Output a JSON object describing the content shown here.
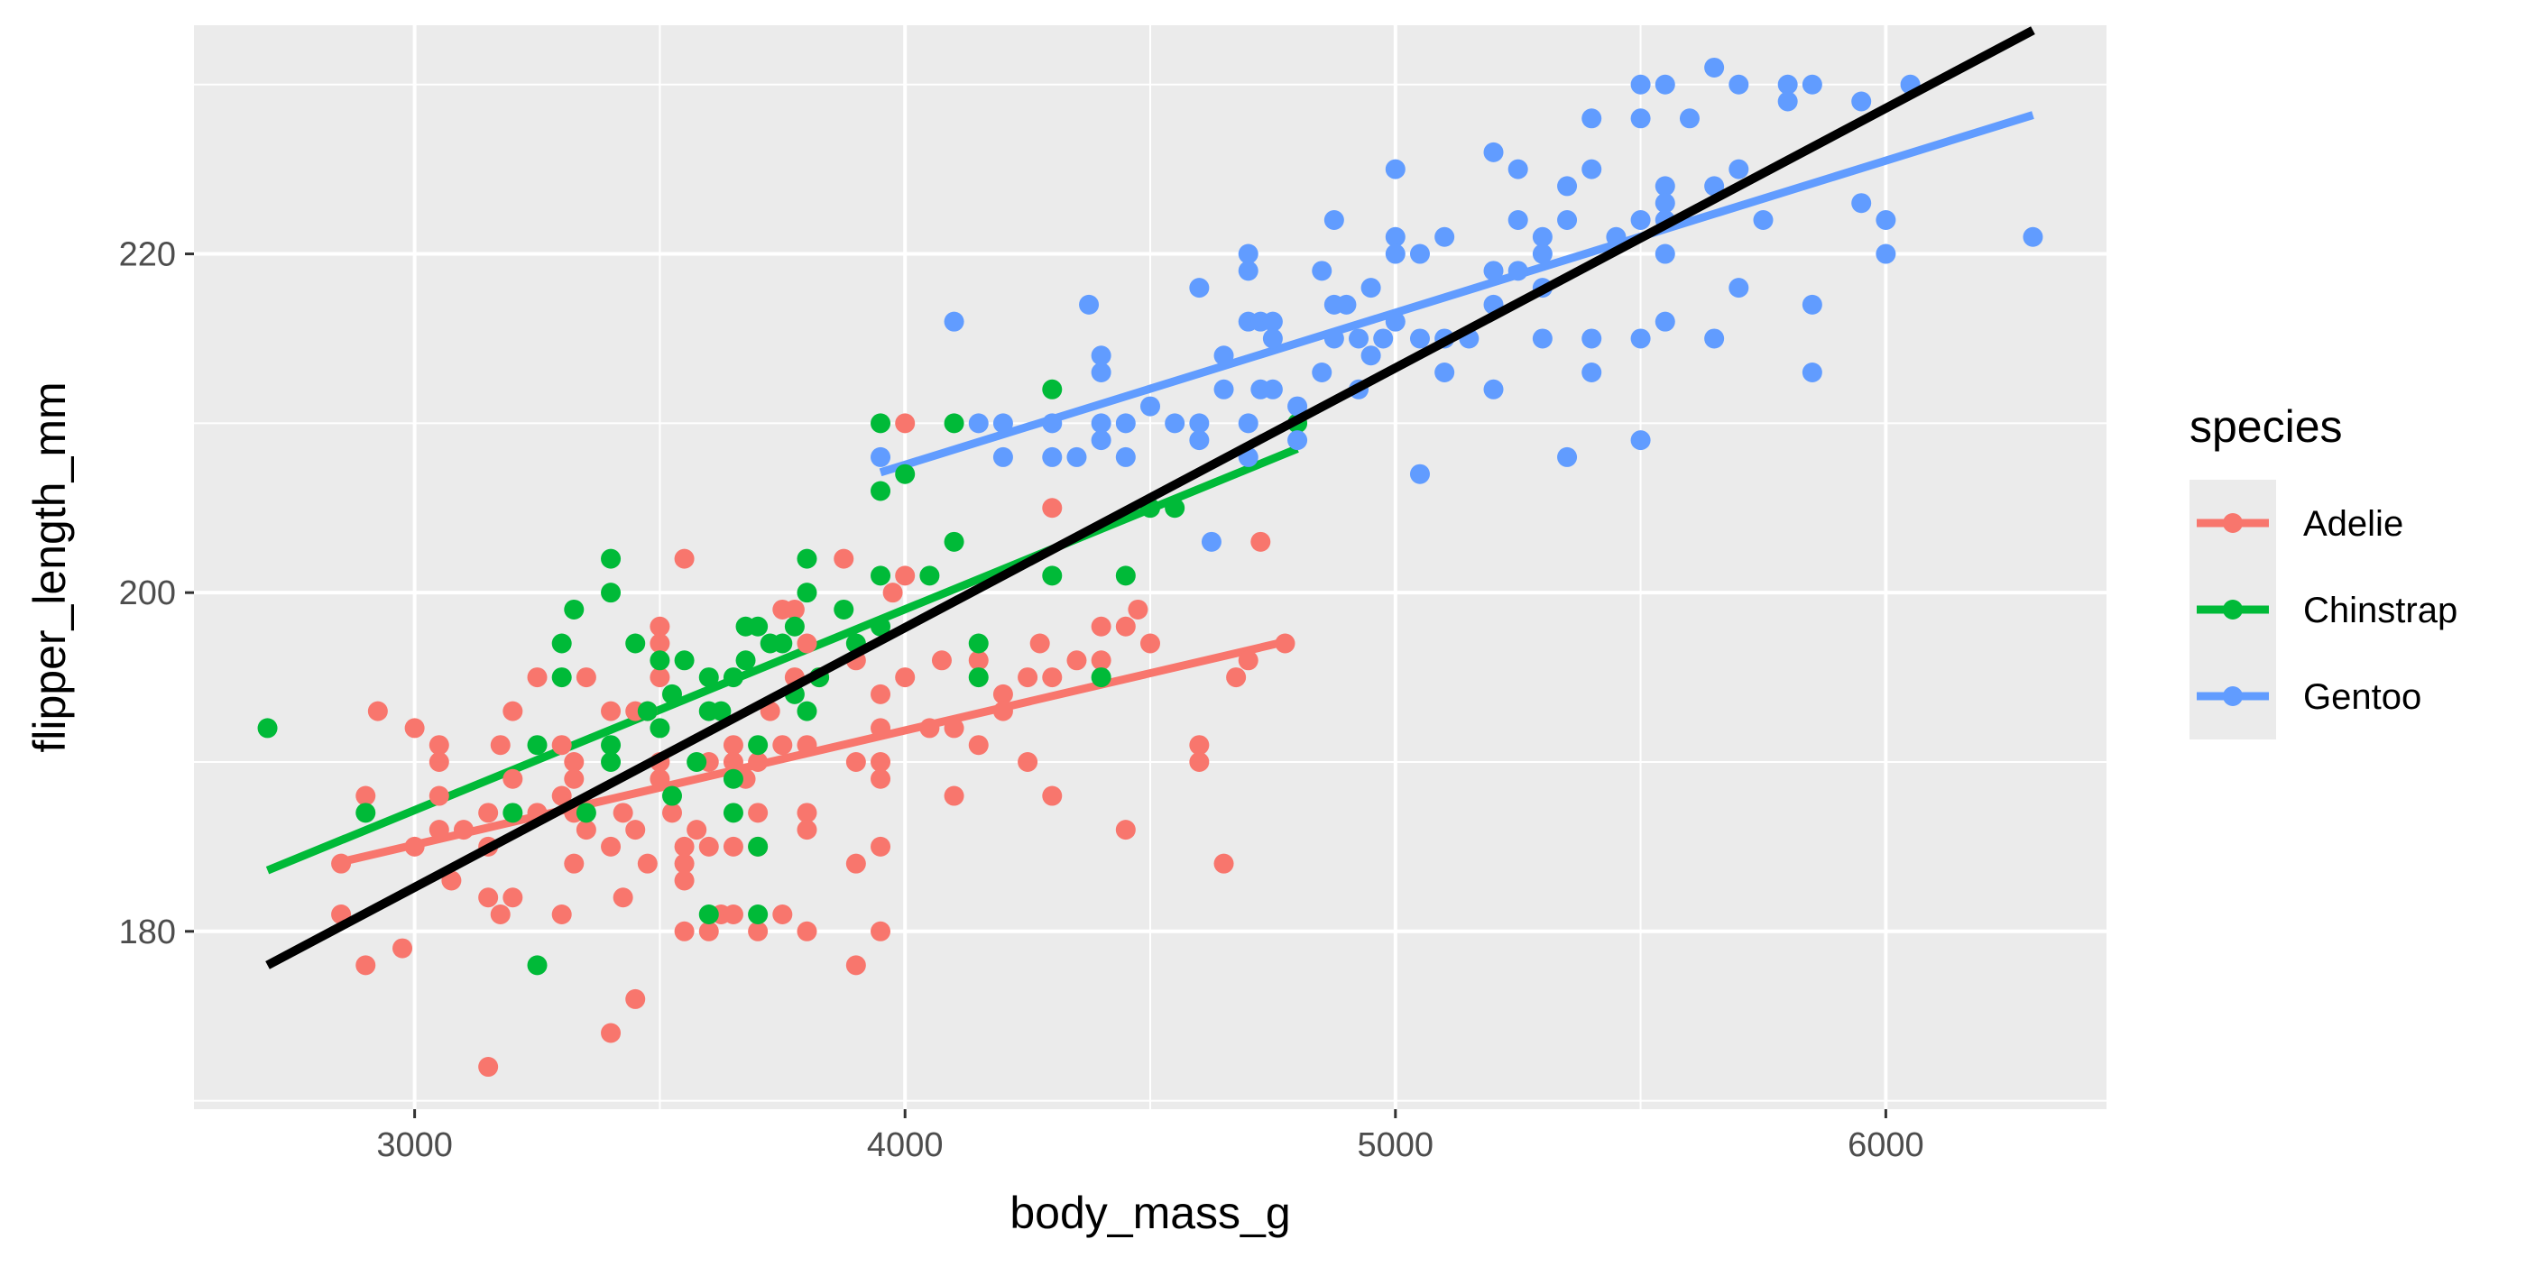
{
  "chart_data": {
    "type": "scatter",
    "xlabel": "body_mass_g",
    "ylabel": "flipper_length_mm",
    "xlim": [
      2550,
      6450
    ],
    "ylim": [
      169.5,
      233.5
    ],
    "x_ticks": [
      3000,
      4000,
      5000,
      6000
    ],
    "x_tick_labels": [
      "3000",
      "4000",
      "5000",
      "6000"
    ],
    "y_ticks": [
      180,
      200,
      220
    ],
    "y_tick_labels": [
      "180",
      "200",
      "220"
    ],
    "grid": true,
    "panel_background": "#ebebeb",
    "legend": {
      "title": "species",
      "position": "right",
      "entries": [
        "Adelie",
        "Chinstrap",
        "Gentoo"
      ]
    },
    "series": [
      {
        "name": "Adelie",
        "color": "#F8766D",
        "points": [
          [
            2850,
            181
          ],
          [
            2850,
            184
          ],
          [
            2900,
            178
          ],
          [
            2900,
            188
          ],
          [
            2925,
            193
          ],
          [
            2975,
            179
          ],
          [
            3000,
            192
          ],
          [
            3000,
            185
          ],
          [
            3050,
            191
          ],
          [
            3050,
            190
          ],
          [
            3050,
            188
          ],
          [
            3050,
            186
          ],
          [
            3075,
            183
          ],
          [
            3100,
            186
          ],
          [
            3150,
            172
          ],
          [
            3150,
            182
          ],
          [
            3150,
            185
          ],
          [
            3150,
            187
          ],
          [
            3175,
            191
          ],
          [
            3175,
            181
          ],
          [
            3200,
            193
          ],
          [
            3200,
            189
          ],
          [
            3200,
            182
          ],
          [
            3250,
            195
          ],
          [
            3250,
            187
          ],
          [
            3300,
            191
          ],
          [
            3300,
            188
          ],
          [
            3300,
            181
          ],
          [
            3325,
            190
          ],
          [
            3325,
            189
          ],
          [
            3325,
            184
          ],
          [
            3325,
            187
          ],
          [
            3350,
            195
          ],
          [
            3350,
            186
          ],
          [
            3400,
            193
          ],
          [
            3400,
            185
          ],
          [
            3400,
            174
          ],
          [
            3425,
            182
          ],
          [
            3425,
            187
          ],
          [
            3450,
            193
          ],
          [
            3450,
            186
          ],
          [
            3450,
            176
          ],
          [
            3475,
            193
          ],
          [
            3475,
            184
          ],
          [
            3500,
            198
          ],
          [
            3500,
            197
          ],
          [
            3500,
            195
          ],
          [
            3500,
            190
          ],
          [
            3500,
            189
          ],
          [
            3525,
            187
          ],
          [
            3550,
            202
          ],
          [
            3550,
            185
          ],
          [
            3550,
            184
          ],
          [
            3550,
            183
          ],
          [
            3550,
            180
          ],
          [
            3575,
            186
          ],
          [
            3600,
            190
          ],
          [
            3600,
            185
          ],
          [
            3600,
            180
          ],
          [
            3625,
            181
          ],
          [
            3650,
            191
          ],
          [
            3650,
            190
          ],
          [
            3650,
            185
          ],
          [
            3650,
            181
          ],
          [
            3675,
            189
          ],
          [
            3700,
            190
          ],
          [
            3700,
            187
          ],
          [
            3700,
            185
          ],
          [
            3700,
            180
          ],
          [
            3725,
            193
          ],
          [
            3750,
            199
          ],
          [
            3750,
            191
          ],
          [
            3750,
            181
          ],
          [
            3775,
            199
          ],
          [
            3775,
            195
          ],
          [
            3800,
            197
          ],
          [
            3800,
            191
          ],
          [
            3800,
            187
          ],
          [
            3800,
            186
          ],
          [
            3800,
            180
          ],
          [
            3825,
            195
          ],
          [
            3875,
            202
          ],
          [
            3900,
            196
          ],
          [
            3900,
            190
          ],
          [
            3900,
            184
          ],
          [
            3900,
            178
          ],
          [
            3950,
            194
          ],
          [
            3950,
            192
          ],
          [
            3950,
            190
          ],
          [
            3950,
            189
          ],
          [
            3950,
            185
          ],
          [
            3950,
            180
          ],
          [
            3975,
            200
          ],
          [
            4000,
            210
          ],
          [
            4000,
            201
          ],
          [
            4000,
            195
          ],
          [
            4050,
            192
          ],
          [
            4075,
            196
          ],
          [
            4100,
            188
          ],
          [
            4100,
            192
          ],
          [
            4150,
            191
          ],
          [
            4150,
            196
          ],
          [
            4200,
            194
          ],
          [
            4200,
            193
          ],
          [
            4250,
            195
          ],
          [
            4250,
            190
          ],
          [
            4275,
            197
          ],
          [
            4300,
            205
          ],
          [
            4300,
            188
          ],
          [
            4300,
            195
          ],
          [
            4350,
            196
          ],
          [
            4400,
            198
          ],
          [
            4400,
            196
          ],
          [
            4450,
            198
          ],
          [
            4450,
            186
          ],
          [
            4475,
            199
          ],
          [
            4500,
            197
          ],
          [
            4600,
            191
          ],
          [
            4600,
            190
          ],
          [
            4650,
            184
          ],
          [
            4675,
            195
          ],
          [
            4700,
            196
          ],
          [
            4725,
            203
          ],
          [
            4775,
            197
          ]
        ],
        "fit": {
          "x": [
            2850,
            4775
          ],
          "y": [
            184.1,
            197.1
          ]
        }
      },
      {
        "name": "Chinstrap",
        "color": "#00BA38",
        "points": [
          [
            2700,
            192
          ],
          [
            2900,
            187
          ],
          [
            3200,
            187
          ],
          [
            3250,
            191
          ],
          [
            3250,
            178
          ],
          [
            3300,
            195
          ],
          [
            3300,
            197
          ],
          [
            3325,
            199
          ],
          [
            3350,
            187
          ],
          [
            3400,
            202
          ],
          [
            3400,
            200
          ],
          [
            3400,
            191
          ],
          [
            3400,
            190
          ],
          [
            3450,
            197
          ],
          [
            3475,
            193
          ],
          [
            3500,
            196
          ],
          [
            3500,
            192
          ],
          [
            3525,
            188
          ],
          [
            3525,
            194
          ],
          [
            3550,
            196
          ],
          [
            3575,
            190
          ],
          [
            3600,
            195
          ],
          [
            3600,
            193
          ],
          [
            3600,
            181
          ],
          [
            3625,
            193
          ],
          [
            3650,
            195
          ],
          [
            3650,
            187
          ],
          [
            3650,
            189
          ],
          [
            3675,
            198
          ],
          [
            3675,
            196
          ],
          [
            3700,
            198
          ],
          [
            3700,
            191
          ],
          [
            3700,
            185
          ],
          [
            3700,
            181
          ],
          [
            3725,
            197
          ],
          [
            3750,
            197
          ],
          [
            3775,
            198
          ],
          [
            3775,
            194
          ],
          [
            3800,
            202
          ],
          [
            3800,
            200
          ],
          [
            3800,
            193
          ],
          [
            3825,
            195
          ],
          [
            3875,
            199
          ],
          [
            3900,
            197
          ],
          [
            3950,
            210
          ],
          [
            3950,
            206
          ],
          [
            3950,
            201
          ],
          [
            3950,
            198
          ],
          [
            4000,
            207
          ],
          [
            4050,
            201
          ],
          [
            4100,
            203
          ],
          [
            4100,
            210
          ],
          [
            4150,
            195
          ],
          [
            4150,
            197
          ],
          [
            4300,
            201
          ],
          [
            4300,
            212
          ],
          [
            4400,
            195
          ],
          [
            4450,
            201
          ],
          [
            4500,
            205
          ],
          [
            4550,
            205
          ],
          [
            4800,
            210
          ]
        ],
        "fit": {
          "x": [
            2700,
            4800
          ],
          "y": [
            183.6,
            208.5
          ]
        }
      },
      {
        "name": "Gentoo",
        "color": "#619CFF",
        "points": [
          [
            3950,
            208
          ],
          [
            4100,
            216
          ],
          [
            4150,
            210
          ],
          [
            4200,
            210
          ],
          [
            4200,
            208
          ],
          [
            4300,
            210
          ],
          [
            4300,
            208
          ],
          [
            4350,
            208
          ],
          [
            4375,
            217
          ],
          [
            4400,
            214
          ],
          [
            4400,
            213
          ],
          [
            4400,
            210
          ],
          [
            4400,
            209
          ],
          [
            4450,
            210
          ],
          [
            4450,
            208
          ],
          [
            4500,
            211
          ],
          [
            4550,
            210
          ],
          [
            4600,
            218
          ],
          [
            4600,
            210
          ],
          [
            4600,
            209
          ],
          [
            4625,
            203
          ],
          [
            4650,
            212
          ],
          [
            4650,
            214
          ],
          [
            4700,
            220
          ],
          [
            4700,
            219
          ],
          [
            4700,
            216
          ],
          [
            4700,
            210
          ],
          [
            4700,
            208
          ],
          [
            4725,
            216
          ],
          [
            4725,
            212
          ],
          [
            4750,
            216
          ],
          [
            4750,
            215
          ],
          [
            4750,
            212
          ],
          [
            4800,
            209
          ],
          [
            4800,
            211
          ],
          [
            4850,
            219
          ],
          [
            4850,
            213
          ],
          [
            4875,
            222
          ],
          [
            4875,
            217
          ],
          [
            4875,
            215
          ],
          [
            4900,
            217
          ],
          [
            4925,
            215
          ],
          [
            4925,
            212
          ],
          [
            4950,
            218
          ],
          [
            4950,
            214
          ],
          [
            4975,
            215
          ],
          [
            5000,
            225
          ],
          [
            5000,
            221
          ],
          [
            5000,
            220
          ],
          [
            5000,
            216
          ],
          [
            5050,
            220
          ],
          [
            5050,
            215
          ],
          [
            5050,
            207
          ],
          [
            5100,
            221
          ],
          [
            5100,
            215
          ],
          [
            5100,
            213
          ],
          [
            5150,
            215
          ],
          [
            5200,
            226
          ],
          [
            5200,
            219
          ],
          [
            5200,
            217
          ],
          [
            5200,
            212
          ],
          [
            5250,
            225
          ],
          [
            5250,
            222
          ],
          [
            5250,
            219
          ],
          [
            5300,
            221
          ],
          [
            5300,
            220
          ],
          [
            5300,
            218
          ],
          [
            5300,
            215
          ],
          [
            5350,
            224
          ],
          [
            5350,
            222
          ],
          [
            5350,
            208
          ],
          [
            5400,
            228
          ],
          [
            5400,
            225
          ],
          [
            5400,
            215
          ],
          [
            5400,
            213
          ],
          [
            5450,
            221
          ],
          [
            5500,
            230
          ],
          [
            5500,
            228
          ],
          [
            5500,
            222
          ],
          [
            5500,
            215
          ],
          [
            5500,
            209
          ],
          [
            5550,
            230
          ],
          [
            5550,
            224
          ],
          [
            5550,
            223
          ],
          [
            5550,
            222
          ],
          [
            5550,
            220
          ],
          [
            5550,
            216
          ],
          [
            5600,
            228
          ],
          [
            5650,
            231
          ],
          [
            5650,
            224
          ],
          [
            5650,
            215
          ],
          [
            5700,
            230
          ],
          [
            5700,
            225
          ],
          [
            5700,
            218
          ],
          [
            5750,
            222
          ],
          [
            5800,
            230
          ],
          [
            5800,
            229
          ],
          [
            5850,
            230
          ],
          [
            5850,
            217
          ],
          [
            5850,
            213
          ],
          [
            5950,
            229
          ],
          [
            5950,
            223
          ],
          [
            6000,
            222
          ],
          [
            6000,
            220
          ],
          [
            6050,
            230
          ],
          [
            6300,
            221
          ]
        ],
        "fit": {
          "x": [
            3950,
            6300
          ],
          "y": [
            207.1,
            228.2
          ]
        }
      }
    ],
    "overall_fit": {
      "color": "#000000",
      "x": [
        2700,
        6300
      ],
      "y": [
        178.0,
        233.2
      ]
    }
  }
}
